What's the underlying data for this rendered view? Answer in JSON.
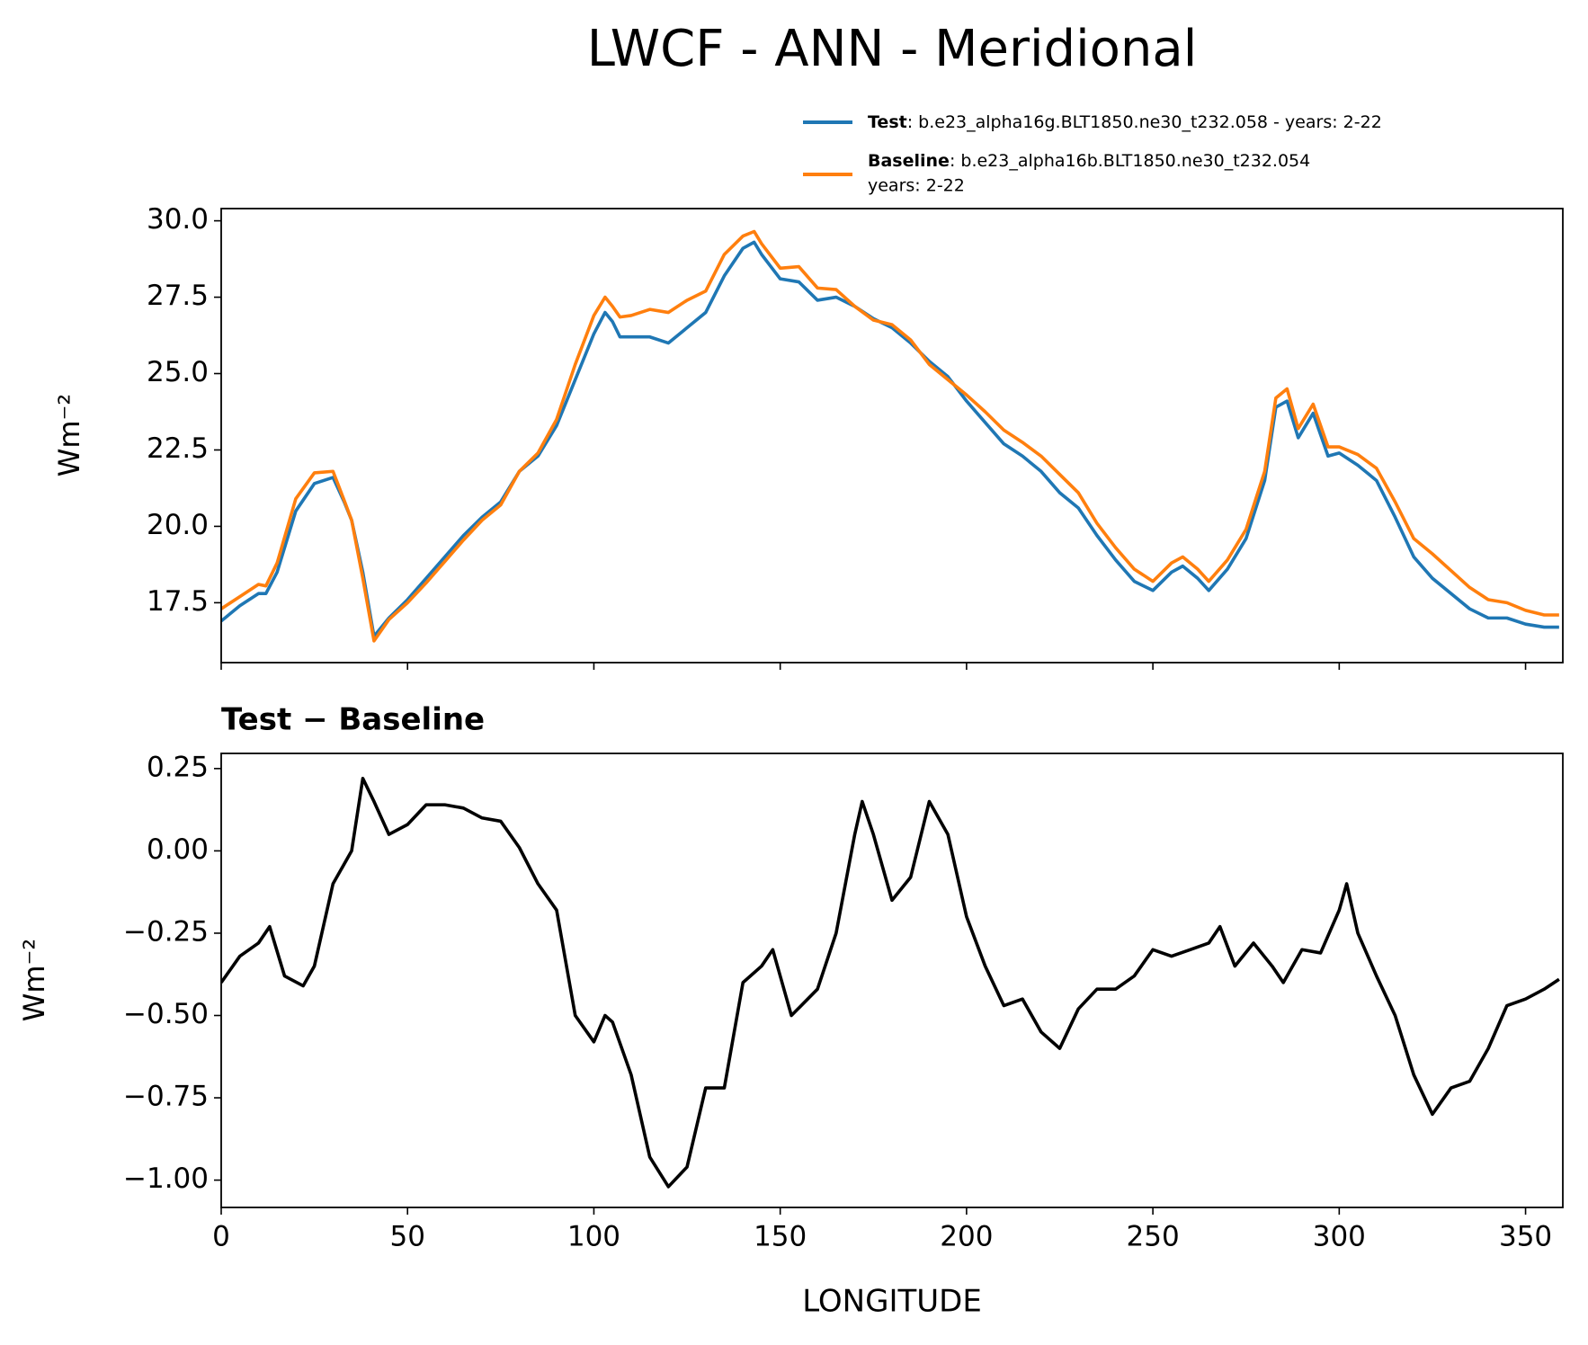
{
  "chart_data": [
    {
      "type": "line",
      "title": "LWCF - ANN - Meridional",
      "ylabel": "Wm⁻²",
      "xlim": [
        0,
        360
      ],
      "xticks": [
        0,
        50,
        100,
        150,
        200,
        250,
        300,
        350
      ],
      "ylim": [
        15.54,
        30.4
      ],
      "yticks": [
        {
          "value": 30.0,
          "label": "30.0"
        },
        27.5,
        {
          "value": 25.0,
          "label": "25.0"
        },
        22.5,
        {
          "value": 20.0,
          "label": "20.0"
        },
        17.5
      ],
      "x": [
        0,
        5,
        10,
        12,
        15,
        20,
        25,
        30,
        33,
        35,
        38,
        41,
        45,
        50,
        55,
        60,
        65,
        70,
        75,
        80,
        85,
        90,
        95,
        100,
        103,
        105,
        107,
        110,
        115,
        120,
        125,
        130,
        135,
        140,
        143,
        145,
        150,
        155,
        160,
        165,
        170,
        175,
        180,
        185,
        190,
        195,
        200,
        205,
        210,
        215,
        220,
        225,
        230,
        235,
        240,
        245,
        250,
        255,
        258,
        262,
        265,
        270,
        275,
        280,
        283,
        286,
        289,
        293,
        297,
        300,
        305,
        310,
        315,
        320,
        325,
        330,
        335,
        340,
        345,
        350,
        355,
        359
      ],
      "series": [
        {
          "name": "Test",
          "description_lines": [
            ": b.e23_alpha16g.BLT1850.ne30_t232.058 - years: 2-22"
          ],
          "color": "#1f77b4",
          "values": [
            16.9,
            17.4,
            17.8,
            17.8,
            18.5,
            20.5,
            21.4,
            21.6,
            20.8,
            20.2,
            18.5,
            16.4,
            17.0,
            17.6,
            18.3,
            19.0,
            19.7,
            20.3,
            20.8,
            21.8,
            22.3,
            23.3,
            24.8,
            26.3,
            27.0,
            26.7,
            26.2,
            26.2,
            26.2,
            26.0,
            26.5,
            27.0,
            28.2,
            29.1,
            29.3,
            28.9,
            28.1,
            28.0,
            27.4,
            27.5,
            27.2,
            26.8,
            26.5,
            26.0,
            25.4,
            24.9,
            24.1,
            23.4,
            22.7,
            22.3,
            21.8,
            21.1,
            20.6,
            19.7,
            18.9,
            18.2,
            17.9,
            18.5,
            18.7,
            18.3,
            17.9,
            18.6,
            19.6,
            21.5,
            23.9,
            24.1,
            22.9,
            23.7,
            22.3,
            22.4,
            22.0,
            21.5,
            20.3,
            19.0,
            18.3,
            17.8,
            17.3,
            17.0,
            17.0,
            16.8,
            16.7,
            16.7
          ]
        },
        {
          "name": "Baseline",
          "description_lines": [
            ": b.e23_alpha16b.BLT1850.ne30_t232.054",
            "years: 2-22"
          ],
          "color": "#ff7f0e",
          "values": [
            17.3,
            17.7,
            18.1,
            18.05,
            18.8,
            20.9,
            21.75,
            21.8,
            20.85,
            20.2,
            18.3,
            16.25,
            16.95,
            17.5,
            18.15,
            18.85,
            19.55,
            20.2,
            20.7,
            21.8,
            22.4,
            23.5,
            25.3,
            26.9,
            27.5,
            27.2,
            26.85,
            26.9,
            27.1,
            27.0,
            27.4,
            27.7,
            28.9,
            29.5,
            29.65,
            29.25,
            28.45,
            28.5,
            27.8,
            27.75,
            27.2,
            26.75,
            26.6,
            26.1,
            25.3,
            24.8,
            24.3,
            23.75,
            23.15,
            22.75,
            22.3,
            21.7,
            21.1,
            20.1,
            19.3,
            18.6,
            18.2,
            18.8,
            19.0,
            18.6,
            18.2,
            18.9,
            19.9,
            21.8,
            24.2,
            24.5,
            23.2,
            24.0,
            22.6,
            22.6,
            22.35,
            21.9,
            20.8,
            19.6,
            19.1,
            18.55,
            18.0,
            17.6,
            17.5,
            17.25,
            17.1,
            17.1
          ]
        }
      ]
    },
    {
      "type": "line",
      "subtitle": "Test − Baseline",
      "xlabel": "LONGITUDE",
      "ylabel": "Wm⁻²",
      "xlim": [
        0,
        360
      ],
      "xticks": [
        0,
        50,
        100,
        150,
        200,
        250,
        300,
        350
      ],
      "ylim": [
        -1.083,
        0.296
      ],
      "yticks": [
        {
          "value": 0.25,
          "label": "0.25"
        },
        {
          "value": 0,
          "label": "0.00"
        },
        {
          "value": -0.25,
          "label": "−0.25"
        },
        {
          "value": -0.5,
          "label": "−0.50"
        },
        {
          "value": -0.75,
          "label": "−0.75"
        },
        {
          "value": -1,
          "label": "−1.00"
        }
      ],
      "x": [
        0,
        5,
        10,
        13,
        17,
        22,
        25,
        30,
        35,
        38,
        41,
        45,
        50,
        55,
        60,
        65,
        70,
        75,
        80,
        85,
        90,
        95,
        100,
        103,
        105,
        110,
        115,
        120,
        125,
        130,
        135,
        140,
        145,
        148,
        150,
        153,
        160,
        165,
        170,
        172,
        175,
        180,
        185,
        190,
        195,
        200,
        205,
        210,
        215,
        220,
        225,
        230,
        235,
        240,
        245,
        250,
        255,
        260,
        265,
        268,
        272,
        277,
        282,
        285,
        290,
        295,
        300,
        302,
        305,
        310,
        315,
        320,
        325,
        330,
        335,
        340,
        345,
        350,
        355,
        359
      ],
      "series": [
        {
          "color": "#000000",
          "values": [
            -0.4,
            -0.32,
            -0.28,
            -0.23,
            -0.38,
            -0.41,
            -0.35,
            -0.1,
            0.0,
            0.22,
            0.15,
            0.05,
            0.08,
            0.14,
            0.14,
            0.13,
            0.1,
            0.09,
            0.01,
            -0.1,
            -0.18,
            -0.5,
            -0.58,
            -0.5,
            -0.52,
            -0.68,
            -0.93,
            -1.02,
            -0.96,
            -0.72,
            -0.72,
            -0.4,
            -0.35,
            -0.3,
            -0.38,
            -0.5,
            -0.42,
            -0.25,
            0.05,
            0.15,
            0.05,
            -0.15,
            -0.08,
            0.15,
            0.05,
            -0.2,
            -0.35,
            -0.47,
            -0.45,
            -0.55,
            -0.6,
            -0.48,
            -0.42,
            -0.42,
            -0.38,
            -0.3,
            -0.32,
            -0.3,
            -0.28,
            -0.23,
            -0.35,
            -0.28,
            -0.35,
            -0.4,
            -0.3,
            -0.31,
            -0.18,
            -0.1,
            -0.25,
            -0.38,
            -0.5,
            -0.68,
            -0.8,
            -0.72,
            -0.7,
            -0.6,
            -0.47,
            -0.45,
            -0.42,
            -0.39
          ]
        }
      ]
    }
  ]
}
